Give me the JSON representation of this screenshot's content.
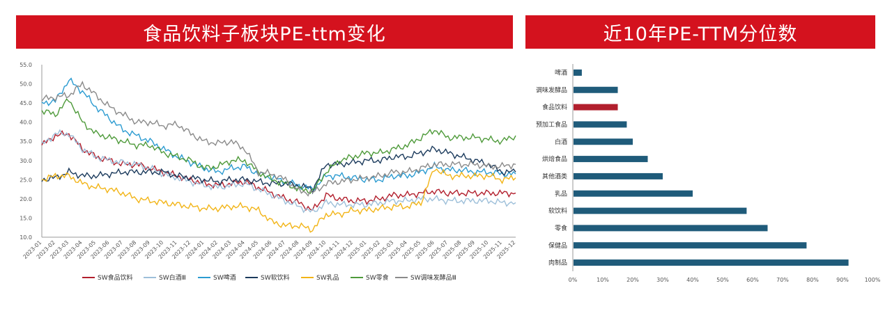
{
  "left_title": "食品饮料子板块PE-ttm变化",
  "right_title": "近10年PE-TTM分位数",
  "chart_data": [
    {
      "type": "line",
      "title": "食品饮料子板块PE-ttm变化",
      "ylim": [
        10,
        55
      ],
      "yticks": [
        "55.0",
        "50.0",
        "45.0",
        "40.0",
        "35.0",
        "30.0",
        "25.0",
        "20.0",
        "15.0",
        "10.0"
      ],
      "x": [
        "2023-01",
        "2023-02",
        "2023-03",
        "2023-04",
        "2023-05",
        "2023-06",
        "2023-07",
        "2023-08",
        "2023-09",
        "2023-10",
        "2023-11",
        "2023-12",
        "2024-01",
        "2024-02",
        "2024-03",
        "2024-04",
        "2024-05",
        "2024-06",
        "2024-07",
        "2024-08",
        "2024-09",
        "2024-10",
        "2024-11",
        "2024-12",
        "2025-01",
        "2025-02",
        "2025-03",
        "2025-04",
        "2025-05",
        "2025-06",
        "2025-07",
        "2025-08",
        "2025-09",
        "2025-10",
        "2025-11",
        "2025-12"
      ],
      "legend_position": "bottom",
      "series": [
        {
          "name": "SW食品饮料",
          "color": "#b21f2d",
          "values": [
            34,
            36.5,
            37,
            33,
            31,
            30,
            29,
            29,
            28,
            27,
            26,
            25,
            24,
            23.5,
            24,
            24.5,
            23,
            21.5,
            20,
            19,
            17,
            21,
            20,
            19.5,
            19.5,
            20,
            21,
            21,
            21.5,
            22,
            21.5,
            21.5,
            21.5,
            21.5,
            21.5,
            21.5
          ]
        },
        {
          "name": "SW白酒Ⅲ",
          "color": "#9dbfd9",
          "values": [
            34,
            37,
            37,
            33,
            31,
            30,
            29.5,
            29,
            28,
            26.5,
            25.5,
            24.5,
            23.5,
            23,
            23.5,
            24,
            22.5,
            21,
            19.5,
            18,
            16.5,
            19,
            18.5,
            18.5,
            18.5,
            19,
            19.5,
            19.5,
            20,
            20,
            19.5,
            19.5,
            19.5,
            19.5,
            19,
            19
          ]
        },
        {
          "name": "SW啤酒",
          "color": "#2b9bd1",
          "values": [
            45,
            45.5,
            51,
            48,
            44,
            41,
            38,
            36.5,
            35,
            33,
            31,
            29.5,
            28,
            27,
            28,
            28.5,
            26.5,
            25.5,
            24.5,
            23.5,
            22.5,
            26,
            26,
            25.5,
            25,
            25,
            26,
            26,
            27,
            28.5,
            27.5,
            27.5,
            27,
            27,
            26.5,
            26.5
          ]
        },
        {
          "name": "SW软饮料",
          "color": "#1b3a5c",
          "values": [
            25,
            25.5,
            27,
            26,
            26,
            26.5,
            27,
            27,
            27,
            27,
            26,
            25.5,
            25,
            24.5,
            25,
            25,
            24.5,
            24,
            24,
            23.5,
            22.5,
            29,
            29,
            29.5,
            30,
            30,
            31,
            31,
            32,
            33,
            32,
            31,
            30,
            29,
            27,
            27
          ]
        },
        {
          "name": "SW乳品",
          "color": "#f2b416",
          "values": [
            25,
            26,
            26,
            24,
            23,
            22.5,
            21.5,
            20,
            19.5,
            19,
            18.5,
            18,
            17.5,
            17.5,
            18,
            18,
            17,
            14,
            13,
            13,
            12,
            16,
            16,
            17,
            17,
            17.5,
            18,
            18,
            19,
            28,
            26,
            26,
            26,
            26,
            25,
            25.5
          ]
        },
        {
          "name": "SW零食",
          "color": "#4e9a3a",
          "values": [
            43,
            42,
            46,
            40,
            37,
            36,
            35,
            34,
            34,
            32,
            31,
            30,
            28,
            28.5,
            30,
            30,
            27,
            25,
            24,
            22.5,
            22,
            27,
            30,
            31,
            32,
            32,
            33,
            34,
            36,
            38,
            36,
            36,
            36,
            35.5,
            35,
            36.5
          ]
        },
        {
          "name": "SW调味发酵品Ⅲ",
          "color": "#8a8a8a",
          "values": [
            46,
            46.5,
            47,
            50,
            47,
            44,
            42,
            40,
            40,
            39,
            39.5,
            37,
            35,
            34.5,
            35,
            33,
            27,
            26.5,
            25,
            22,
            21.5,
            24,
            24.5,
            25,
            25.5,
            26,
            27,
            27,
            28,
            29,
            29,
            29,
            29,
            28.5,
            28.5,
            29
          ]
        }
      ]
    },
    {
      "type": "bar",
      "title": "近10年PE-TTM分位数",
      "orientation": "horizontal",
      "categories": [
        "啤酒",
        "调味发酵品",
        "食品饮料",
        "预加工食品",
        "白酒",
        "烘焙食品",
        "其他酒类",
        "乳品",
        "软饮料",
        "零食",
        "保健品",
        "肉制品"
      ],
      "values": [
        3,
        15,
        15,
        18,
        20,
        25,
        30,
        40,
        58,
        65,
        78,
        92
      ],
      "highlight": "食品饮料",
      "bar_color": "#1f5b7a",
      "highlight_color": "#b21f2d",
      "xlim": [
        0,
        100
      ],
      "xticks": [
        "0%",
        "10%",
        "20%",
        "30%",
        "40%",
        "50%",
        "60%",
        "70%",
        "80%",
        "90%",
        "100%"
      ]
    }
  ]
}
